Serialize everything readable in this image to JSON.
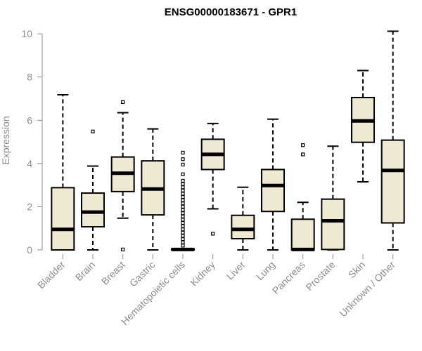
{
  "chart_data": {
    "type": "boxplot",
    "title": "ENSG00000183671 - GPR1",
    "ylabel": "Expression",
    "xlabel": "",
    "ylim": [
      0,
      10.2
    ],
    "yticks": [
      0,
      2,
      4,
      6,
      8,
      10
    ],
    "grid": false,
    "legend": "none",
    "box_fill": "#efe8d2",
    "box_stroke": "#000000",
    "categories": [
      "Bladder",
      "Brain",
      "Breast",
      "Gastric",
      "Hematopoietic cells",
      "Kidney",
      "Liver",
      "Lung",
      "Pancreas",
      "Prostate",
      "Skin",
      "Unknown / Other"
    ],
    "boxes": [
      {
        "min": 0.0,
        "q1": 0.0,
        "median": 0.95,
        "q3": 2.88,
        "max": 7.18,
        "outliers": []
      },
      {
        "min": 0.0,
        "q1": 1.07,
        "median": 1.75,
        "q3": 2.63,
        "max": 3.88,
        "outliers": [
          5.48
        ]
      },
      {
        "min": 1.47,
        "q1": 2.7,
        "median": 3.55,
        "q3": 4.3,
        "max": 6.35,
        "outliers": [
          6.84,
          0.02
        ]
      },
      {
        "min": 0.0,
        "q1": 1.62,
        "median": 2.82,
        "q3": 4.12,
        "max": 5.6,
        "outliers": []
      },
      {
        "min": 0.0,
        "q1": 0.0,
        "median": 0.02,
        "q3": 0.05,
        "max": 0.05,
        "outliers": [
          0.2,
          0.35,
          0.5,
          0.65,
          0.8,
          0.95,
          1.1,
          1.25,
          1.4,
          1.55,
          1.7,
          1.85,
          2.0,
          2.15,
          2.3,
          2.45,
          2.6,
          2.75,
          2.9,
          3.05,
          3.2,
          3.5,
          3.95,
          4.2,
          4.5
        ]
      },
      {
        "min": 1.9,
        "q1": 3.72,
        "median": 4.42,
        "q3": 5.12,
        "max": 5.85,
        "outliers": [
          0.75
        ]
      },
      {
        "min": 0.0,
        "q1": 0.52,
        "median": 0.95,
        "q3": 1.6,
        "max": 2.9,
        "outliers": []
      },
      {
        "min": 0.0,
        "q1": 1.78,
        "median": 2.98,
        "q3": 3.72,
        "max": 6.05,
        "outliers": []
      },
      {
        "min": 0.0,
        "q1": 0.0,
        "median": 0.02,
        "q3": 1.42,
        "max": 2.2,
        "outliers": [
          4.42,
          4.85
        ]
      },
      {
        "min": 0.0,
        "q1": 0.02,
        "median": 1.35,
        "q3": 2.35,
        "max": 4.8,
        "outliers": []
      },
      {
        "min": 3.15,
        "q1": 4.98,
        "median": 5.97,
        "q3": 7.05,
        "max": 8.3,
        "outliers": []
      },
      {
        "min": 0.0,
        "q1": 1.25,
        "median": 3.68,
        "q3": 5.08,
        "max": 10.12,
        "outliers": []
      }
    ]
  }
}
